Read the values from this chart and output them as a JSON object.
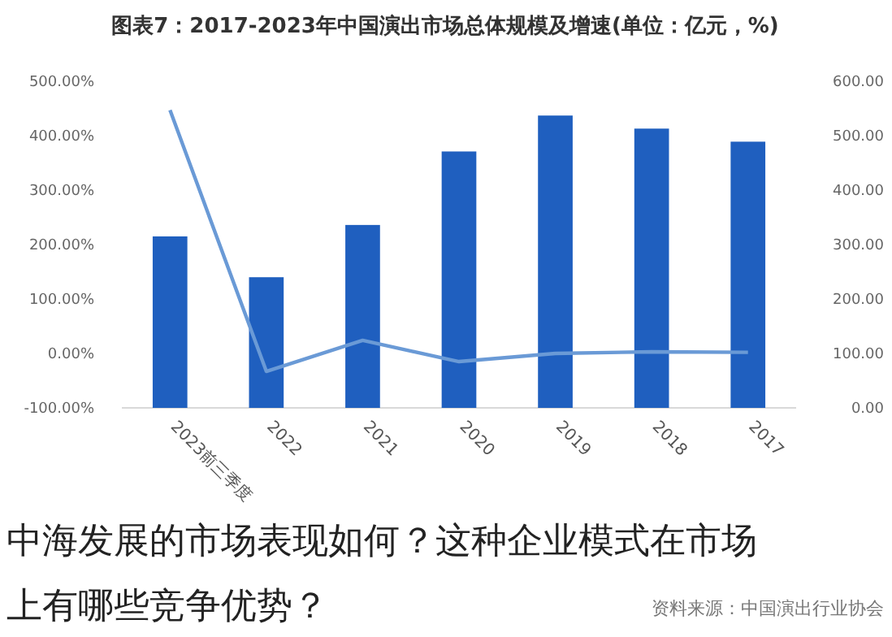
{
  "chart_data": {
    "type": "bar",
    "title": "图表7：2017-2023年中国演出市场总体规模及增速(单位：亿元，%)",
    "categories": [
      "2023前三季度",
      "2022",
      "2021",
      "2020",
      "2019",
      "2018",
      "2017"
    ],
    "series": [
      {
        "color": "#1f5fbf",
        "values": [
          315,
          240,
          336,
          471,
          537,
          513,
          489
        ]
      },
      {
        "type": "line",
        "axis": "y2",
        "color": "#6a9ad6",
        "values": [
          447,
          -33,
          24,
          -15,
          0,
          3,
          2
        ]
      }
    ],
    "ylim": [
      0,
      600
    ],
    "yticks": [
      {
        "value": 0,
        "label": "0.00"
      },
      {
        "value": 100,
        "label": "100.00"
      },
      {
        "value": 200,
        "label": "200.00"
      },
      {
        "value": 300,
        "label": "300.00"
      },
      {
        "value": 400,
        "label": "400.00"
      },
      {
        "value": 500,
        "label": "500.00"
      },
      {
        "value": 600,
        "label": "600.00"
      }
    ],
    "y2lim": [
      -100,
      500
    ],
    "y2ticks": [
      {
        "value": -100,
        "label": "-100.00%"
      },
      {
        "value": 0,
        "label": "0.00%"
      },
      {
        "value": 100,
        "label": "100.00%"
      },
      {
        "value": 200,
        "label": "200.00%"
      },
      {
        "value": 300,
        "label": "300.00%"
      },
      {
        "value": 400,
        "label": "400.00%"
      },
      {
        "value": 500,
        "label": "500.00%"
      }
    ],
    "annotations": [
      "中海发展的市场表现如何？这种企业模式在市场上有哪些竞争优势？",
      "资料来源：中国演出行业协会"
    ]
  }
}
